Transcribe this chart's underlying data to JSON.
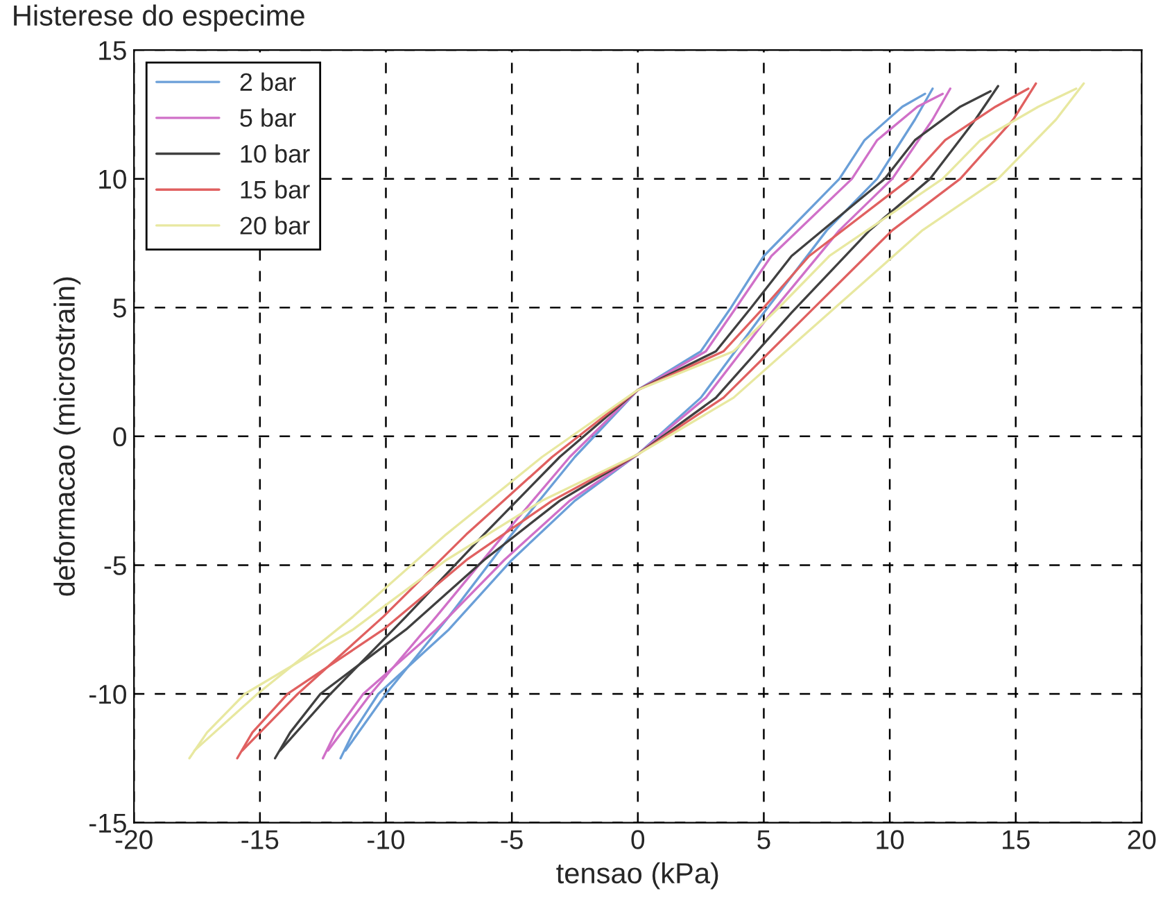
{
  "chart_data": {
    "type": "line",
    "title": "Histerese do especime",
    "xlabel": "tensao (kPa)",
    "ylabel": "deformacao (microstrain)",
    "xlim": [
      -20,
      20
    ],
    "ylim": [
      -15,
      15
    ],
    "xticks": [
      -20,
      -15,
      -10,
      -5,
      0,
      5,
      10,
      15,
      20
    ],
    "yticks": [
      -15,
      -10,
      -5,
      0,
      5,
      10,
      15
    ],
    "grid": true,
    "legend": "top left",
    "series": [
      {
        "name": "2 bar",
        "color": "#6a9fd8",
        "x": [
          -11.8,
          -11.3,
          -10.3,
          -7.5,
          -5,
          -2.5,
          0,
          2.5,
          5,
          7.5,
          9.5,
          11,
          11.7
        ],
        "values": [
          -12.5,
          -11.5,
          -10,
          -7.5,
          -4.8,
          -2.5,
          -0.7,
          1.5,
          4.8,
          8,
          10,
          12.3,
          13.5
        ]
      },
      {
        "color": "#6a9fd8",
        "x": [
          -11.6,
          -10,
          -7.5,
          -5,
          -2.5,
          0,
          2.5,
          3.7,
          5,
          8,
          9,
          10.5,
          11.4
        ],
        "values": [
          -12.2,
          -10,
          -7,
          -3.8,
          -0.8,
          1.8,
          3.3,
          5,
          7,
          10,
          11.5,
          12.8,
          13.3
        ]
      },
      {
        "name": "5 bar",
        "color": "#d070c8",
        "x": [
          -12.5,
          -12.0,
          -10.9,
          -8.0,
          -5.3,
          -2.7,
          0,
          2.7,
          5.3,
          8.0,
          10.1,
          11.7,
          12.4
        ],
        "values": [
          -12.5,
          -11.5,
          -10,
          -7.5,
          -4.8,
          -2.5,
          -0.7,
          1.5,
          4.8,
          8,
          10,
          12.3,
          13.5
        ]
      },
      {
        "color": "#d070c8",
        "x": [
          -12.3,
          -10.6,
          -8.0,
          -5.3,
          -2.7,
          0,
          2.7,
          3.9,
          5.3,
          8.5,
          9.5,
          11.1,
          12.1
        ],
        "values": [
          -12.2,
          -10,
          -7,
          -3.8,
          -0.8,
          1.8,
          3.3,
          5,
          7,
          10,
          11.5,
          12.8,
          13.3
        ]
      },
      {
        "name": "10 bar",
        "color": "#404040",
        "x": [
          -14.4,
          -13.8,
          -12.6,
          -9.2,
          -6.1,
          -3.1,
          0,
          3.1,
          6.1,
          9.2,
          11.6,
          13.4,
          14.3
        ],
        "values": [
          -12.5,
          -11.5,
          -10,
          -7.5,
          -4.8,
          -2.5,
          -0.7,
          1.5,
          4.8,
          8,
          10,
          12.3,
          13.6
        ]
      },
      {
        "color": "#404040",
        "x": [
          -14.2,
          -12.2,
          -9.2,
          -6.1,
          -3.1,
          0,
          3.1,
          4.5,
          6.1,
          9.8,
          11.0,
          12.8,
          14.0
        ],
        "values": [
          -12.2,
          -10,
          -7,
          -3.8,
          -0.8,
          1.8,
          3.3,
          5,
          7,
          10,
          11.5,
          12.8,
          13.4
        ]
      },
      {
        "name": "15 bar",
        "color": "#e06060",
        "x": [
          -15.9,
          -15.3,
          -13.9,
          -10.1,
          -6.8,
          -3.4,
          0,
          3.4,
          6.8,
          10.1,
          12.8,
          14.9,
          15.8
        ],
        "values": [
          -12.5,
          -11.5,
          -10,
          -7.5,
          -4.8,
          -2.5,
          -0.7,
          1.5,
          4.8,
          8,
          10,
          12.3,
          13.7
        ]
      },
      {
        "color": "#e06060",
        "x": [
          -15.7,
          -13.5,
          -10.1,
          -6.8,
          -3.4,
          0,
          3.4,
          5.0,
          6.8,
          10.8,
          12.2,
          14.2,
          15.5
        ],
        "values": [
          -12.2,
          -10,
          -7,
          -3.8,
          -0.8,
          1.8,
          3.3,
          5,
          7,
          10,
          11.5,
          12.8,
          13.5
        ]
      },
      {
        "name": "20 bar",
        "color": "#e8e8a0",
        "x": [
          -17.8,
          -17.1,
          -15.6,
          -11.3,
          -7.6,
          -3.8,
          0,
          3.8,
          7.6,
          11.3,
          14.3,
          16.6,
          17.7
        ],
        "values": [
          -12.5,
          -11.5,
          -10,
          -7.5,
          -4.8,
          -2.5,
          -0.7,
          1.5,
          4.8,
          8,
          10,
          12.3,
          13.7
        ]
      },
      {
        "color": "#e8e8a0",
        "x": [
          -17.6,
          -15.1,
          -11.3,
          -7.6,
          -3.8,
          0,
          3.8,
          5.6,
          7.6,
          12.1,
          13.6,
          15.9,
          17.4
        ],
        "values": [
          -12.2,
          -10,
          -7,
          -3.8,
          -0.8,
          1.8,
          3.3,
          5,
          7,
          10,
          11.5,
          12.8,
          13.5
        ]
      }
    ]
  }
}
